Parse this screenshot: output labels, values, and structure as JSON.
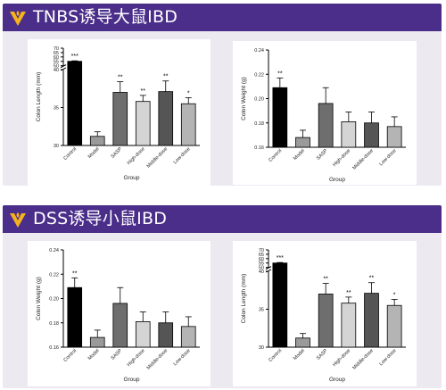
{
  "colors": {
    "header_bg": "#4a2e8a",
    "logo": "#f5b21c",
    "panel_bg": "#ece9f1"
  },
  "sections": [
    {
      "title": "TNBS诱导大鼠IBD",
      "logo_icon": "v-shaped-flame-logo-icon"
    },
    {
      "title": "DSS诱导小鼠IBD",
      "logo_icon": "v-shaped-flame-logo-icon"
    }
  ],
  "chart_data": [
    {
      "type": "bar",
      "section": 0,
      "xlabel": "Group",
      "ylabel": "Colon Length (mm)",
      "categories": [
        "Control",
        "Model",
        "SASP",
        "High-dose",
        "Middle-dose",
        "Low-dose"
      ],
      "values": [
        55,
        31.2,
        37.0,
        35.8,
        37.1,
        35.5
      ],
      "errors": [
        0.6,
        0.6,
        1.4,
        0.8,
        1.4,
        0.8
      ],
      "significance": [
        "***",
        "",
        "**",
        "**",
        "**",
        "*"
      ],
      "bar_colors": [
        "#000000",
        "#9a9a9a",
        "#6e6e6e",
        "#d4d4d4",
        "#555555",
        "#b4b4b4"
      ],
      "ylim": [
        30,
        70
      ],
      "axis_break": [
        40,
        50
      ],
      "y_ticks_lower": [
        "30",
        "35",
        "40"
      ],
      "y_ticks_upper": [
        "50",
        "55",
        "60",
        "65",
        "70"
      ]
    },
    {
      "type": "bar",
      "section": 0,
      "xlabel": "Group",
      "ylabel": "Colon Weight (g)",
      "categories": [
        "Control",
        "Model",
        "SASP",
        "High-dose",
        "Middle-dose",
        "Low-dose"
      ],
      "values": [
        0.209,
        0.168,
        0.196,
        0.181,
        0.18,
        0.177
      ],
      "errors": [
        0.008,
        0.006,
        0.013,
        0.008,
        0.009,
        0.008
      ],
      "significance": [
        "**",
        "",
        "",
        "",
        "",
        ""
      ],
      "bar_colors": [
        "#000000",
        "#9a9a9a",
        "#6e6e6e",
        "#d4d4d4",
        "#555555",
        "#b4b4b4"
      ],
      "ylim": [
        0.16,
        0.24
      ],
      "y_ticks": [
        "0.16",
        "0.18",
        "0.20",
        "0.22",
        "0.24"
      ]
    },
    {
      "type": "bar",
      "section": 1,
      "xlabel": "Group",
      "ylabel": "Colon Weight (g)",
      "categories": [
        "Control",
        "Model",
        "SASP",
        "High-dose",
        "Middle-dose",
        "Low-dose"
      ],
      "values": [
        0.209,
        0.168,
        0.196,
        0.181,
        0.18,
        0.177
      ],
      "errors": [
        0.008,
        0.006,
        0.013,
        0.008,
        0.009,
        0.008
      ],
      "significance": [
        "**",
        "",
        "",
        "",
        "",
        ""
      ],
      "bar_colors": [
        "#000000",
        "#9a9a9a",
        "#6e6e6e",
        "#d4d4d4",
        "#555555",
        "#b4b4b4"
      ],
      "ylim": [
        0.16,
        0.24
      ],
      "y_ticks": [
        "0.16",
        "0.18",
        "0.20",
        "0.22",
        "0.24"
      ]
    },
    {
      "type": "bar",
      "section": 1,
      "xlabel": "Group",
      "ylabel": "Colon Length (mm)",
      "categories": [
        "Control",
        "Model",
        "SASP",
        "High-dose",
        "Middle-dose",
        "Low-dose"
      ],
      "values": [
        55,
        31.2,
        37.0,
        35.8,
        37.1,
        35.5
      ],
      "errors": [
        0.6,
        0.6,
        1.4,
        0.8,
        1.4,
        0.8
      ],
      "significance": [
        "***",
        "",
        "**",
        "**",
        "**",
        "*"
      ],
      "bar_colors": [
        "#000000",
        "#9a9a9a",
        "#6e6e6e",
        "#d4d4d4",
        "#555555",
        "#b4b4b4"
      ],
      "ylim": [
        30,
        70
      ],
      "axis_break": [
        40,
        50
      ],
      "y_ticks_lower": [
        "30",
        "35",
        "40"
      ],
      "y_ticks_upper": [
        "50",
        "55",
        "60",
        "65",
        "70"
      ]
    }
  ]
}
